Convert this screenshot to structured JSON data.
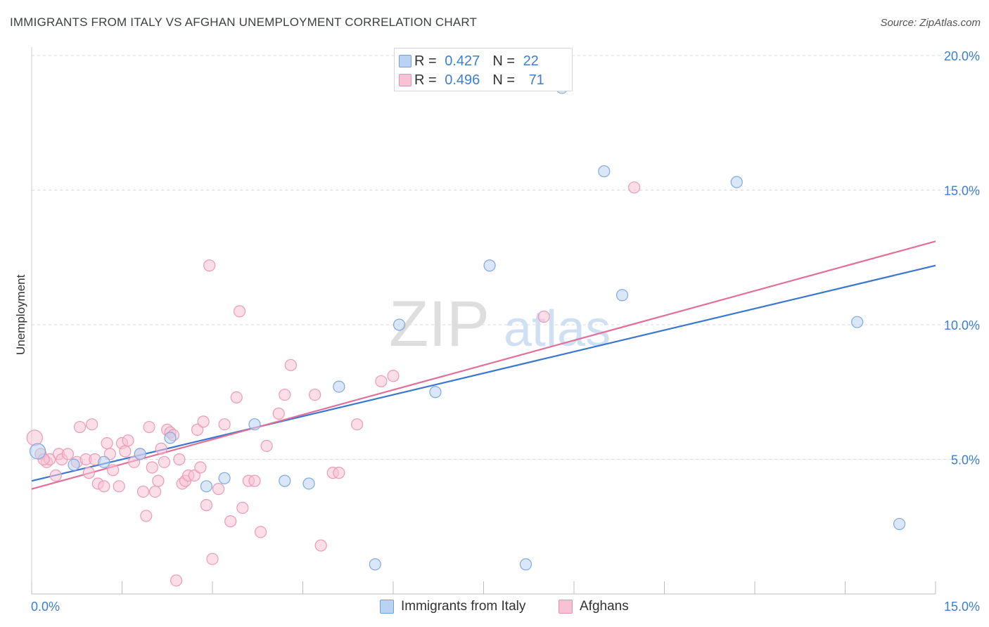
{
  "header": {
    "title": "IMMIGRANTS FROM ITALY VS AFGHAN UNEMPLOYMENT CORRELATION CHART",
    "source": "Source: ZipAtlas.com"
  },
  "colors": {
    "blue": "#3a78d0",
    "blue_fill": "#bad3f3",
    "pink": "#e0709a",
    "pink_fill": "#f7c3d4",
    "grid": "#d9d9d9",
    "tick_label": "#3c7fd0"
  },
  "legend": {
    "italy": {
      "r_label": "R = ",
      "r_value": "0.427",
      "n_label": "N = ",
      "n_value": "22"
    },
    "afghans": {
      "r_label": "R = ",
      "r_value": "0.496",
      "n_label": "N = ",
      "n_value": "71"
    }
  },
  "bottom_legend": {
    "italy": "Immigrants from Italy",
    "afghans": "Afghans"
  },
  "watermark": {
    "zip": "ZIP",
    "atlas": "atlas"
  },
  "chart_data": {
    "type": "scatter",
    "title": "IMMIGRANTS FROM ITALY VS AFGHAN UNEMPLOYMENT CORRELATION CHART",
    "xlabel": "",
    "ylabel": "Unemployment",
    "xlim": [
      0,
      15
    ],
    "ylim": [
      0,
      20
    ],
    "x_tick_labels": [
      "0.0%",
      "15.0%"
    ],
    "y_ticks": [
      5,
      10,
      15,
      20
    ],
    "y_tick_labels": [
      "5.0%",
      "10.0%",
      "15.0%",
      "20.0%"
    ],
    "grid": true,
    "series": [
      {
        "name": "Immigrants from Italy",
        "color": "#3a78d0",
        "r": 0.427,
        "n": 22,
        "trend": {
          "x": [
            0,
            15
          ],
          "y": [
            4.2,
            12.2
          ]
        },
        "points": [
          [
            0.1,
            5.3
          ],
          [
            0.7,
            4.8
          ],
          [
            1.2,
            4.9
          ],
          [
            1.8,
            5.2
          ],
          [
            2.3,
            5.8
          ],
          [
            2.9,
            4.0
          ],
          [
            3.2,
            4.3
          ],
          [
            3.7,
            6.3
          ],
          [
            4.2,
            4.2
          ],
          [
            4.6,
            4.1
          ],
          [
            5.1,
            7.7
          ],
          [
            5.7,
            1.1
          ],
          [
            6.1,
            10.0
          ],
          [
            6.7,
            7.5
          ],
          [
            7.6,
            12.2
          ],
          [
            8.2,
            1.1
          ],
          [
            8.8,
            18.8
          ],
          [
            9.5,
            15.7
          ],
          [
            9.8,
            11.1
          ],
          [
            11.7,
            15.3
          ],
          [
            13.7,
            10.1
          ],
          [
            14.4,
            2.6
          ]
        ]
      },
      {
        "name": "Afghans",
        "color": "#e0709a",
        "r": 0.496,
        "n": 71,
        "trend": {
          "x": [
            0,
            15
          ],
          "y": [
            3.9,
            13.1
          ]
        },
        "points": [
          [
            0.05,
            5.8
          ],
          [
            0.15,
            5.2
          ],
          [
            0.25,
            4.9
          ],
          [
            0.3,
            5.0
          ],
          [
            0.4,
            4.4
          ],
          [
            0.45,
            5.2
          ],
          [
            0.5,
            5.0
          ],
          [
            0.6,
            5.2
          ],
          [
            0.75,
            4.9
          ],
          [
            0.8,
            6.2
          ],
          [
            0.9,
            5.0
          ],
          [
            0.95,
            4.5
          ],
          [
            1.0,
            6.3
          ],
          [
            1.05,
            5.0
          ],
          [
            1.1,
            4.1
          ],
          [
            1.2,
            4.0
          ],
          [
            1.3,
            5.2
          ],
          [
            1.35,
            4.6
          ],
          [
            1.45,
            4.0
          ],
          [
            1.5,
            5.6
          ],
          [
            1.55,
            5.3
          ],
          [
            1.6,
            5.7
          ],
          [
            1.7,
            4.9
          ],
          [
            1.8,
            5.2
          ],
          [
            1.85,
            3.8
          ],
          [
            1.9,
            2.9
          ],
          [
            1.95,
            6.2
          ],
          [
            2.0,
            4.7
          ],
          [
            2.05,
            3.8
          ],
          [
            2.1,
            4.2
          ],
          [
            2.15,
            5.4
          ],
          [
            2.2,
            4.9
          ],
          [
            2.25,
            6.1
          ],
          [
            2.3,
            6.0
          ],
          [
            2.4,
            0.5
          ],
          [
            2.45,
            5.0
          ],
          [
            2.5,
            4.1
          ],
          [
            2.55,
            4.2
          ],
          [
            2.6,
            4.4
          ],
          [
            2.7,
            4.4
          ],
          [
            2.75,
            6.1
          ],
          [
            2.8,
            4.7
          ],
          [
            2.85,
            6.4
          ],
          [
            2.9,
            3.3
          ],
          [
            2.95,
            12.2
          ],
          [
            3.0,
            1.3
          ],
          [
            3.1,
            3.9
          ],
          [
            3.2,
            6.3
          ],
          [
            3.3,
            2.7
          ],
          [
            3.4,
            7.3
          ],
          [
            3.45,
            10.5
          ],
          [
            3.5,
            3.2
          ],
          [
            3.6,
            4.2
          ],
          [
            3.7,
            4.2
          ],
          [
            3.8,
            2.3
          ],
          [
            3.9,
            5.5
          ],
          [
            4.1,
            6.7
          ],
          [
            4.2,
            7.4
          ],
          [
            4.3,
            8.5
          ],
          [
            4.7,
            7.4
          ],
          [
            4.8,
            1.8
          ],
          [
            5.0,
            4.5
          ],
          [
            5.1,
            4.5
          ],
          [
            5.4,
            6.3
          ],
          [
            5.8,
            7.9
          ],
          [
            6.0,
            8.1
          ],
          [
            8.5,
            10.3
          ],
          [
            10.0,
            15.1
          ],
          [
            0.2,
            5.0
          ],
          [
            1.25,
            5.6
          ],
          [
            2.35,
            5.9
          ]
        ]
      }
    ]
  }
}
